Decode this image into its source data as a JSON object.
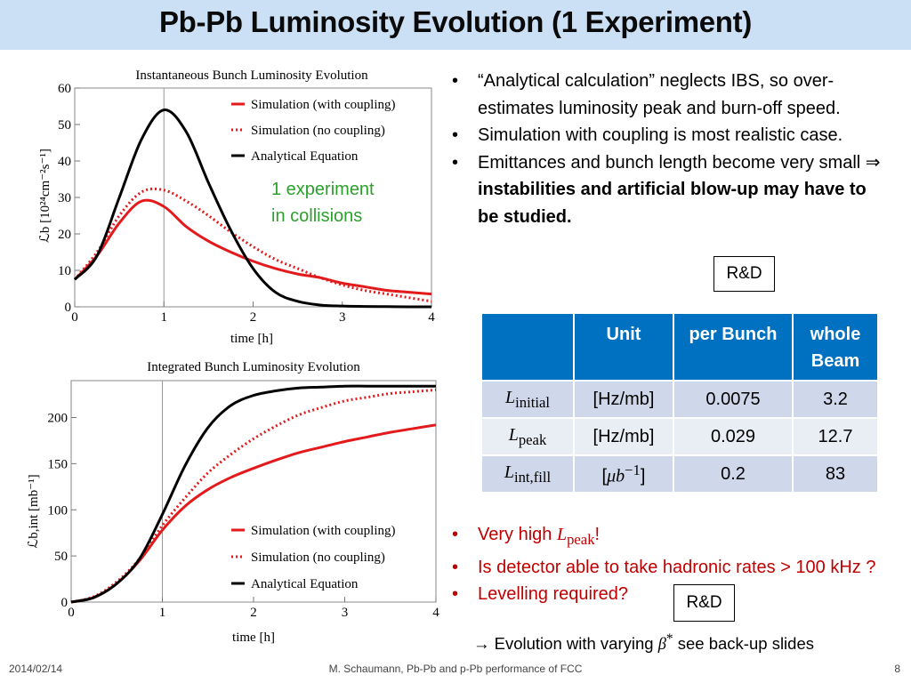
{
  "slide": {
    "title": "Pb-Pb Luminosity Evolution (1 Experiment)",
    "footer_date": "2014/02/14",
    "footer_center": "M. Schaumann, Pb-Pb and p-Pb performance of FCC",
    "page_number": "8"
  },
  "annotation": {
    "line1": "1 experiment",
    "line2": "in collisions"
  },
  "bullets_top": [
    {
      "text": "“Analytical calculation” neglects IBS, so over-estimates luminosity peak and burn-off speed."
    },
    {
      "text": "Simulation with coupling is most realistic case."
    },
    {
      "text_plain": "Emittances and bunch length become very small ",
      "arrow": "⇒",
      "text_bold": " instabilities and artificial blow-up may have to be studied."
    }
  ],
  "rd_label": "R&D",
  "table": {
    "headers": [
      "",
      "Unit",
      "per Bunch",
      "whole Beam"
    ],
    "rows": [
      {
        "symbol": "L",
        "sub": "initial",
        "sup": "",
        "unit": "[Hz/mb]",
        "per_bunch": "0.0075",
        "whole_beam": "3.2"
      },
      {
        "symbol": "L",
        "sub": "peak",
        "sup": "",
        "unit": "[Hz/mb]",
        "per_bunch": "0.029",
        "whole_beam": "12.7"
      },
      {
        "symbol": "L",
        "sub": "int,fill",
        "sup": "",
        "unit_pre": "[",
        "unit_sym": "μb",
        "unit_sup": "−1",
        "unit_post": "]",
        "per_bunch": "0.2",
        "whole_beam": "83"
      }
    ]
  },
  "bullets_red": [
    {
      "pre": "Very high ",
      "sym": "L",
      "sub": "peak",
      "post": "!"
    },
    {
      "text": "Is detector able to take hadronic rates > 100 kHz ?"
    },
    {
      "text": "Levelling required?"
    }
  ],
  "arrow_note": {
    "arrow": "→",
    "pre": " Evolution with varying ",
    "sym": "β",
    "sup": "*",
    "post": " see back-up slides"
  },
  "chart_data": [
    {
      "type": "line",
      "title": "Instantaneous Bunch Luminosity Evolution",
      "xlabel": "time [h]",
      "ylabel": "ℒb [10²⁴cm⁻²s⁻¹]",
      "xlim": [
        0,
        4
      ],
      "ylim": [
        0,
        60
      ],
      "xticks": [
        0,
        1,
        2,
        3,
        4
      ],
      "yticks": [
        0,
        10,
        20,
        30,
        40,
        50,
        60
      ],
      "grid": false,
      "legend_position": "top-right",
      "x": [
        0,
        0.25,
        0.5,
        0.75,
        1.0,
        1.25,
        1.5,
        1.75,
        2.0,
        2.25,
        2.5,
        2.75,
        3.0,
        3.25,
        3.5,
        3.75,
        4.0
      ],
      "series": [
        {
          "name": "Simulation (with coupling)",
          "color": "#e31a1c",
          "dash": "solid",
          "values": [
            7.5,
            14,
            23,
            29,
            27.5,
            22,
            18,
            15,
            12.5,
            10.5,
            9,
            8,
            6.5,
            5.5,
            4.5,
            4,
            3.5
          ]
        },
        {
          "name": "Simulation (no coupling)",
          "color": "#e31a1c",
          "dash": "dotted",
          "values": [
            7.5,
            15,
            25,
            31.5,
            32,
            29,
            25,
            20.5,
            16.5,
            13,
            10.5,
            8,
            6,
            4.5,
            3.5,
            2.5,
            1.5
          ]
        },
        {
          "name": "Analytical Equation",
          "color": "#000000",
          "dash": "solid",
          "values": [
            7.5,
            14,
            30,
            46,
            54,
            48,
            34,
            21,
            10.5,
            4,
            1.5,
            0.5,
            0.2,
            0.1,
            0.05,
            0,
            0
          ]
        }
      ]
    },
    {
      "type": "line",
      "title": "Integrated Bunch Luminosity Evolution",
      "xlabel": "time [h]",
      "ylabel": "ℒb,int [mb⁻¹]",
      "xlim": [
        0,
        4
      ],
      "ylim": [
        0,
        240
      ],
      "xticks": [
        0,
        1,
        2,
        3,
        4
      ],
      "yticks": [
        0,
        50,
        100,
        150,
        200
      ],
      "grid": false,
      "legend_position": "bottom-right",
      "x": [
        0,
        0.25,
        0.5,
        0.75,
        1.0,
        1.25,
        1.5,
        1.75,
        2.0,
        2.25,
        2.5,
        2.75,
        3.0,
        3.25,
        3.5,
        3.75,
        4.0
      ],
      "series": [
        {
          "name": "Simulation (with coupling)",
          "color": "#e31a1c",
          "dash": "solid",
          "values": [
            0,
            5,
            20,
            45,
            78,
            104,
            122,
            135,
            145,
            154,
            162,
            168,
            174,
            179,
            184,
            188,
            192
          ]
        },
        {
          "name": "Simulation (no coupling)",
          "color": "#e31a1c",
          "dash": "dotted",
          "values": [
            0,
            6,
            22,
            47,
            83,
            113,
            140,
            160,
            177,
            191,
            203,
            211,
            218,
            222,
            226,
            228,
            230
          ]
        },
        {
          "name": "Analytical Equation",
          "color": "#000000",
          "dash": "solid",
          "values": [
            0,
            5,
            20,
            47,
            95,
            148,
            189,
            213,
            224,
            229,
            232,
            233,
            234,
            234,
            234,
            234,
            234
          ]
        }
      ]
    }
  ]
}
